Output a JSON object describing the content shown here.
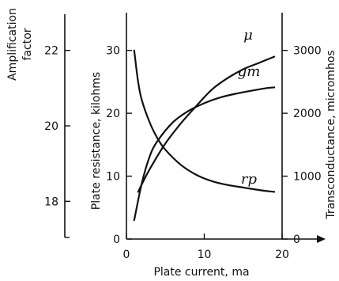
{
  "chart_data": {
    "type": "line",
    "xlabel": "Plate current, ma",
    "x_ticks": [
      "0",
      "10",
      "20"
    ],
    "xlim": [
      0,
      20
    ],
    "axes": {
      "plate_resistance": {
        "label": "Plate resistance, kilohms",
        "ticks": [
          "0",
          "10",
          "20",
          "30"
        ],
        "ylim": [
          0,
          36
        ]
      },
      "transconductance": {
        "label": "Transconductance, micromhos",
        "ticks": [
          "0",
          "1000",
          "2000",
          "3000"
        ],
        "ylim": [
          0,
          3600
        ]
      },
      "amplification_factor": {
        "label_line1": "Amplification",
        "label_line2": "factor",
        "ticks": [
          "18",
          "20",
          "22"
        ],
        "ylim": [
          17,
          23
        ]
      }
    },
    "series": [
      {
        "name": "μ",
        "axis": "amplification_factor",
        "x": [
          1,
          2,
          3,
          4,
          6,
          8,
          10,
          12,
          14,
          16,
          18,
          19
        ],
        "y": [
          17.5,
          18.5,
          19.2,
          19.6,
          20.1,
          20.4,
          20.6,
          20.75,
          20.85,
          20.93,
          21.0,
          21.02
        ]
      },
      {
        "name": "gm",
        "axis": "transconductance",
        "x": [
          1.5,
          2.5,
          3.5,
          5,
          7,
          9,
          11,
          13,
          15,
          17,
          19
        ],
        "y": [
          750,
          1000,
          1220,
          1520,
          1840,
          2120,
          2380,
          2560,
          2700,
          2800,
          2900
        ]
      },
      {
        "name": "rp",
        "axis": "plate_resistance",
        "x": [
          1,
          1.5,
          2,
          3,
          4,
          5,
          7,
          9,
          11,
          13,
          15,
          17,
          19
        ],
        "y": [
          30,
          25,
          22,
          18.5,
          16,
          14.2,
          11.8,
          10.2,
          9.2,
          8.6,
          8.2,
          7.8,
          7.5
        ]
      }
    ]
  }
}
